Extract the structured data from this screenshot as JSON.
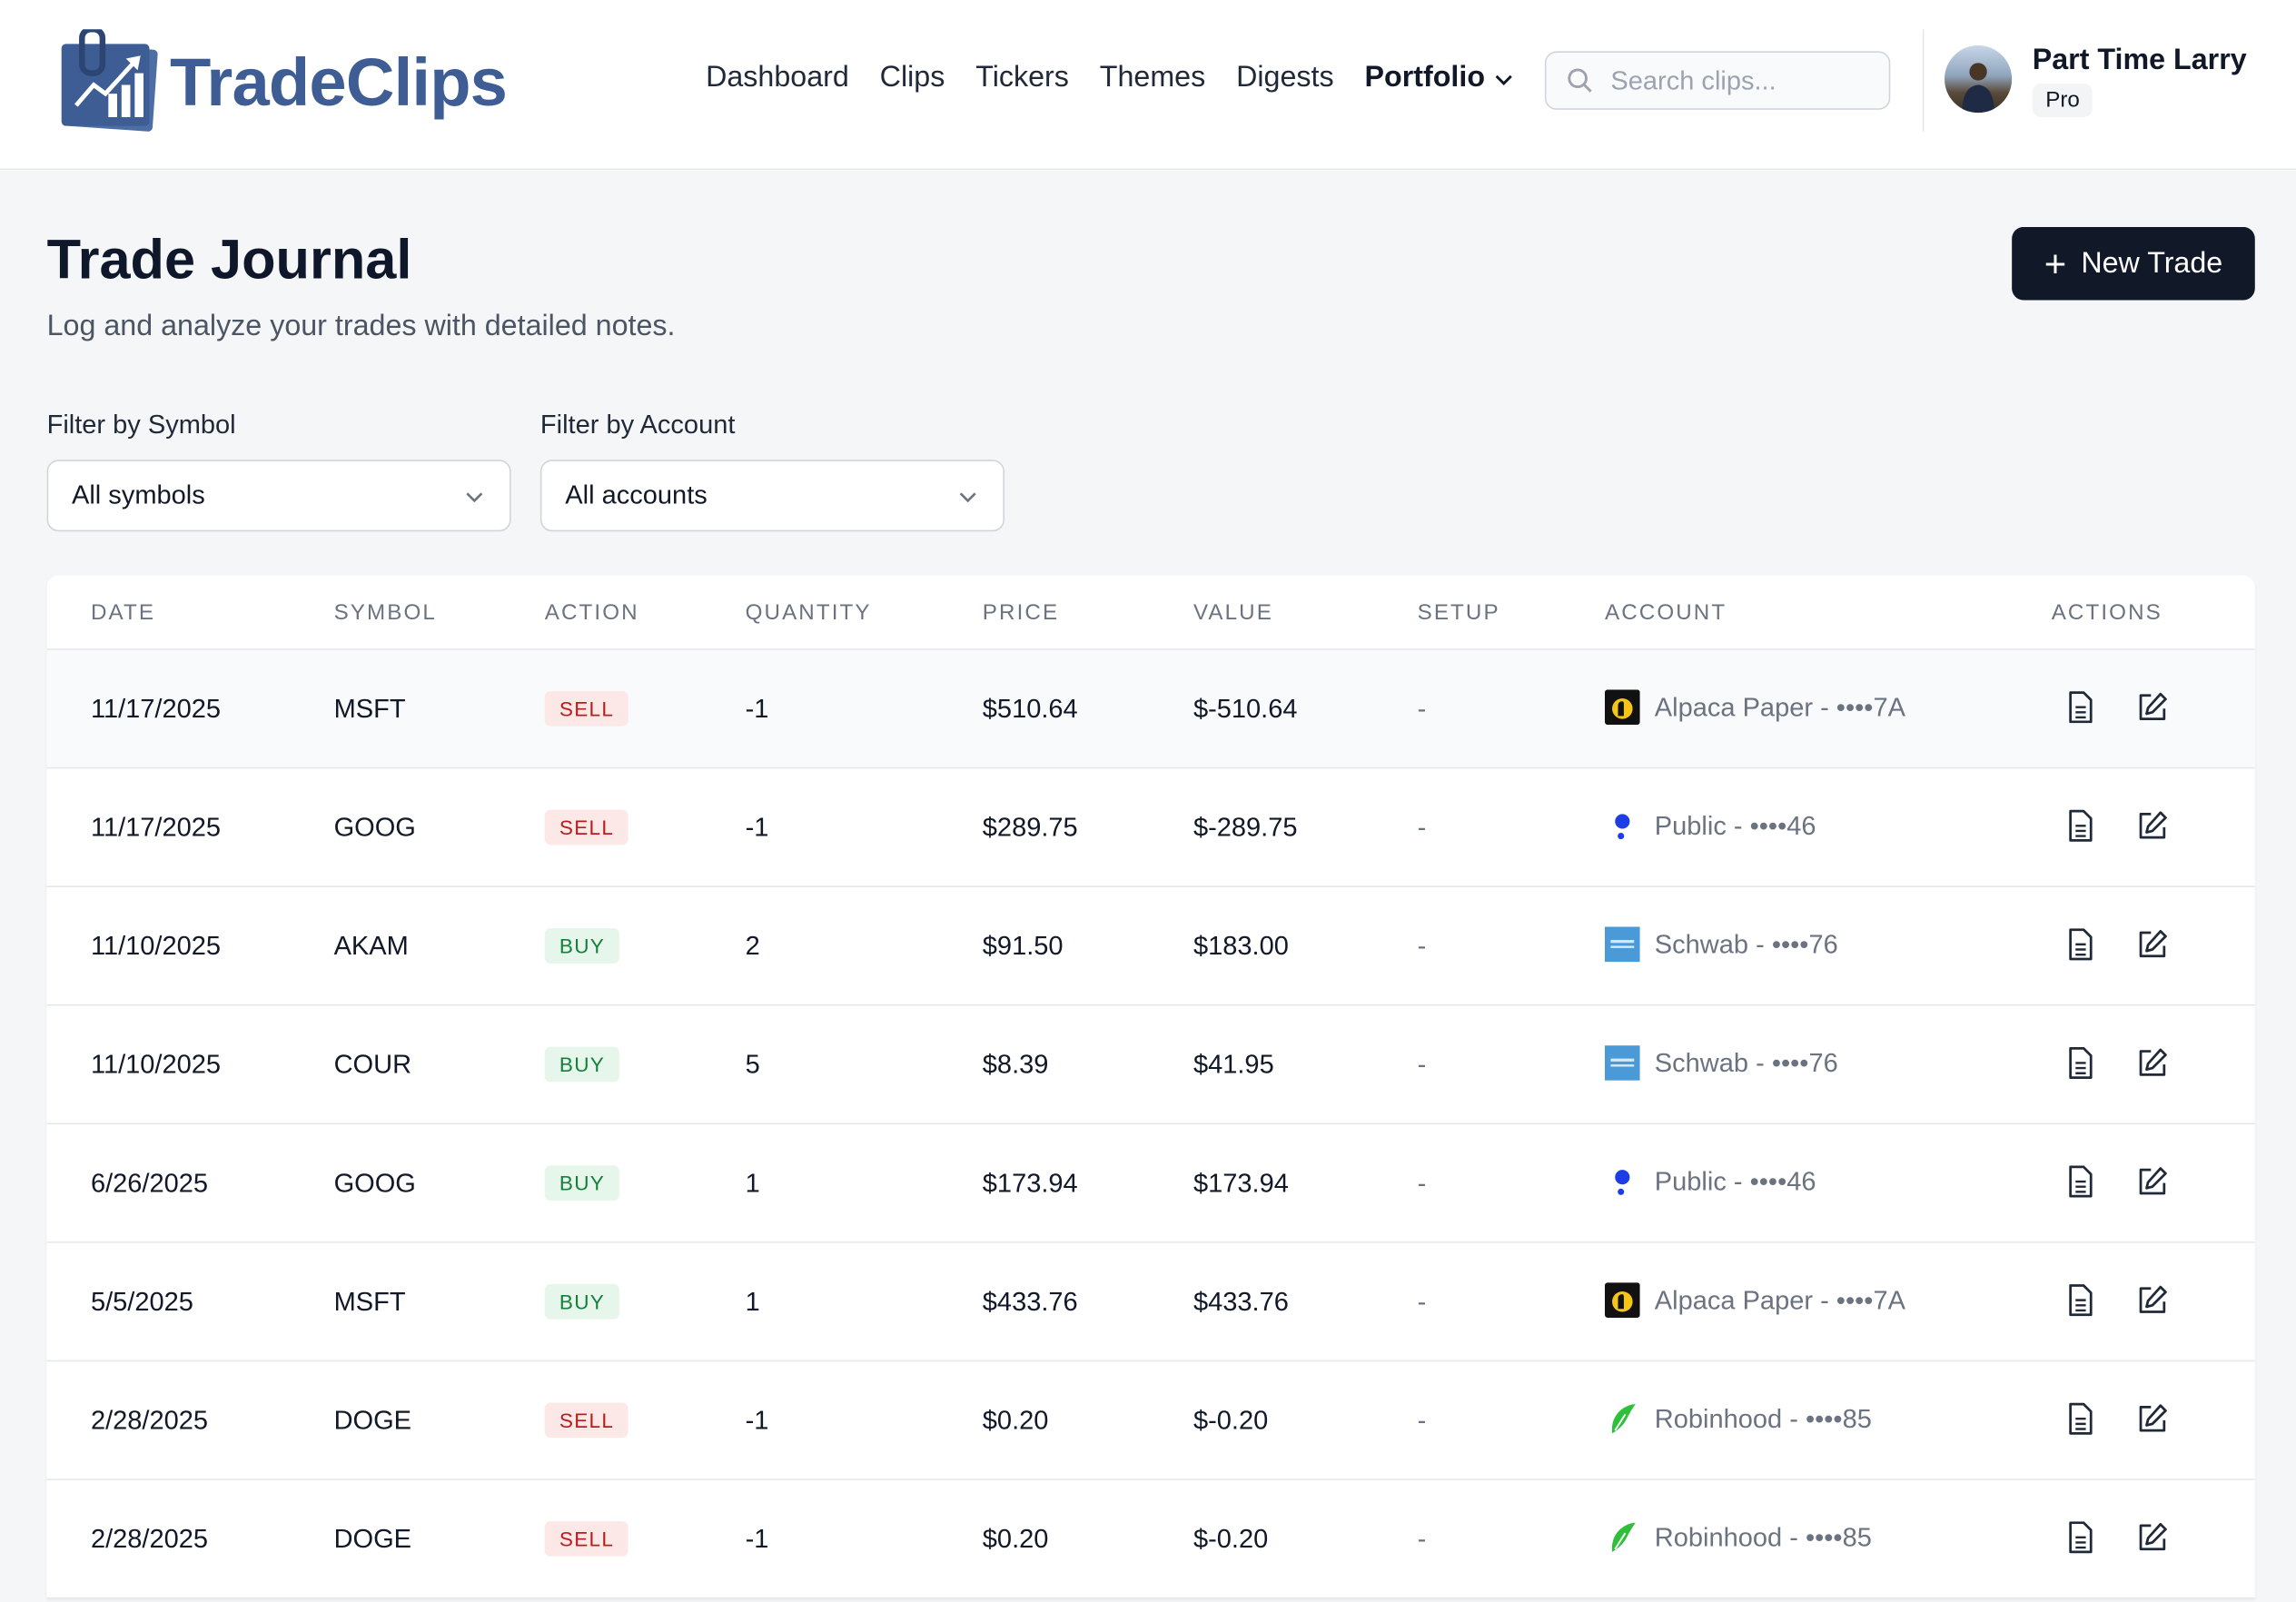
{
  "app": {
    "name": "TradeClips"
  },
  "nav": {
    "items": [
      "Dashboard",
      "Clips",
      "Tickers",
      "Themes",
      "Digests"
    ],
    "active": "Portfolio"
  },
  "search": {
    "placeholder": "Search clips..."
  },
  "user": {
    "name": "Part Time Larry",
    "plan": "Pro"
  },
  "page": {
    "title": "Trade Journal",
    "subtitle": "Log and analyze your trades with detailed notes.",
    "new_trade_label": "New Trade"
  },
  "filters": {
    "symbol": {
      "label": "Filter by Symbol",
      "value": "All symbols"
    },
    "account": {
      "label": "Filter by Account",
      "value": "All accounts"
    }
  },
  "table": {
    "headers": [
      "DATE",
      "SYMBOL",
      "ACTION",
      "QUANTITY",
      "PRICE",
      "VALUE",
      "SETUP",
      "ACCOUNT",
      "ACTIONS"
    ],
    "rows": [
      {
        "date": "11/17/2025",
        "symbol": "MSFT",
        "action": "SELL",
        "quantity": "-1",
        "price": "$510.64",
        "value": "$-510.64",
        "setup": "-",
        "account": "Alpaca Paper - ••••7A",
        "broker": "alpaca"
      },
      {
        "date": "11/17/2025",
        "symbol": "GOOG",
        "action": "SELL",
        "quantity": "-1",
        "price": "$289.75",
        "value": "$-289.75",
        "setup": "-",
        "account": "Public - ••••46",
        "broker": "public"
      },
      {
        "date": "11/10/2025",
        "symbol": "AKAM",
        "action": "BUY",
        "quantity": "2",
        "price": "$91.50",
        "value": "$183.00",
        "setup": "-",
        "account": "Schwab - ••••76",
        "broker": "schwab"
      },
      {
        "date": "11/10/2025",
        "symbol": "COUR",
        "action": "BUY",
        "quantity": "5",
        "price": "$8.39",
        "value": "$41.95",
        "setup": "-",
        "account": "Schwab - ••••76",
        "broker": "schwab"
      },
      {
        "date": "6/26/2025",
        "symbol": "GOOG",
        "action": "BUY",
        "quantity": "1",
        "price": "$173.94",
        "value": "$173.94",
        "setup": "-",
        "account": "Public - ••••46",
        "broker": "public"
      },
      {
        "date": "5/5/2025",
        "symbol": "MSFT",
        "action": "BUY",
        "quantity": "1",
        "price": "$433.76",
        "value": "$433.76",
        "setup": "-",
        "account": "Alpaca Paper - ••••7A",
        "broker": "alpaca"
      },
      {
        "date": "2/28/2025",
        "symbol": "DOGE",
        "action": "SELL",
        "quantity": "-1",
        "price": "$0.20",
        "value": "$-0.20",
        "setup": "-",
        "account": "Robinhood - ••••85",
        "broker": "robinhood"
      },
      {
        "date": "2/28/2025",
        "symbol": "DOGE",
        "action": "SELL",
        "quantity": "-1",
        "price": "$0.20",
        "value": "$-0.20",
        "setup": "-",
        "account": "Robinhood - ••••85",
        "broker": "robinhood"
      }
    ]
  },
  "colors": {
    "brand": "#3d5d94",
    "primary_button": "#111827",
    "sell_bg": "#fde8e8",
    "buy_bg": "#e6f6ea"
  },
  "icons": {
    "note": "note-icon",
    "edit": "edit-icon",
    "search": "search-icon",
    "chevron": "chevron-down-icon"
  }
}
